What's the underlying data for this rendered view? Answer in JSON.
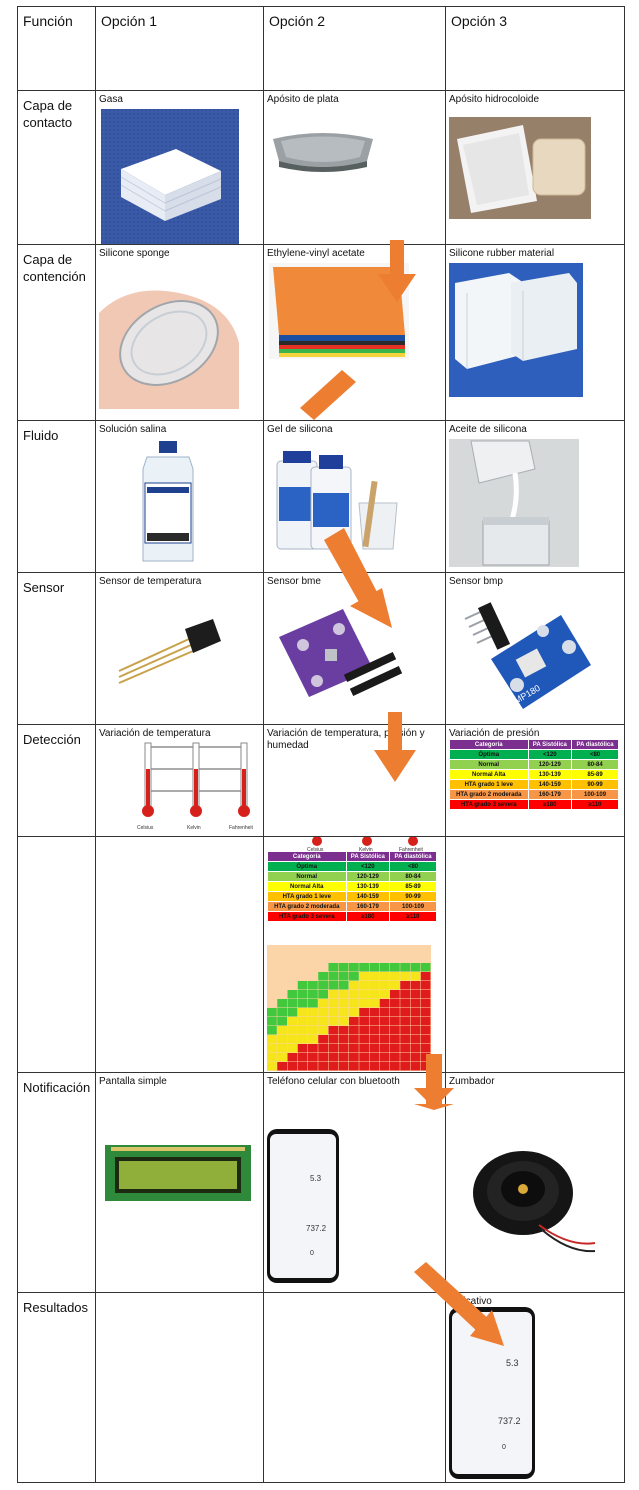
{
  "header": {
    "function": "Función",
    "option1": "Opción 1",
    "option2": "Opción 2",
    "option3": "Opción 3"
  },
  "rows": {
    "contact": {
      "name": "Capa de contacto",
      "o1": "Gasa",
      "o2": "Apósito de plata",
      "o3": "Apósito hidrocoloide"
    },
    "containment": {
      "name": "Capa de contención",
      "o1": "Silicone sponge",
      "o2": "Ethylene-vinyl acetate",
      "o3": "Silicone rubber material"
    },
    "fluid": {
      "name": "Fluido",
      "o1": "Solución salina",
      "o2": "Gel de silicona",
      "o3": "Aceite de silicona"
    },
    "sensor": {
      "name": "Sensor",
      "o1": "Sensor de temperatura",
      "o2": "Sensor bme",
      "o3": "Sensor bmp"
    },
    "detection": {
      "name": "Detección",
      "o1": "Variación de temperatura",
      "o2": "Variación de temperatura, presión y humedad",
      "o3": "Variación de presión"
    },
    "notification": {
      "name": "Notificación",
      "o1": "Pantalla simple",
      "o2": "Teléfono celular con bluetooth",
      "o3": "Zumbador"
    },
    "results": {
      "name": "Resultados",
      "o3": "Aplicativo"
    }
  },
  "thermo": {
    "c": "Celsius",
    "k": "Kelvin",
    "f": "Fahrenheit"
  },
  "bp_table": {
    "headers": [
      "Categoría",
      "PA Sistólica",
      "PA diastólica"
    ],
    "rows": [
      [
        "Óptima",
        "<120",
        "<80"
      ],
      [
        "Normal",
        "120-129",
        "80-84"
      ],
      [
        "Normal Alta",
        "130-139",
        "85-89"
      ],
      [
        "HTA grado 1 leve",
        "140-159",
        "90-99"
      ],
      [
        "HTA grado 2 moderada",
        "160-179",
        "100-109"
      ],
      [
        "HTA grado 3 severa",
        "≥180",
        "≥110"
      ]
    ],
    "colors": [
      "#7b2f8e",
      "#00b050",
      "#92d050",
      "#ffff00",
      "#ffc000",
      "#f79646",
      "#ff0000"
    ]
  },
  "sensor_chip": "BMP180",
  "phone": {
    "v1": "5.3",
    "v2": "737.2",
    "v3": "0"
  },
  "colors": {
    "arrow": "#ed7d31",
    "grid": "#333333"
  }
}
